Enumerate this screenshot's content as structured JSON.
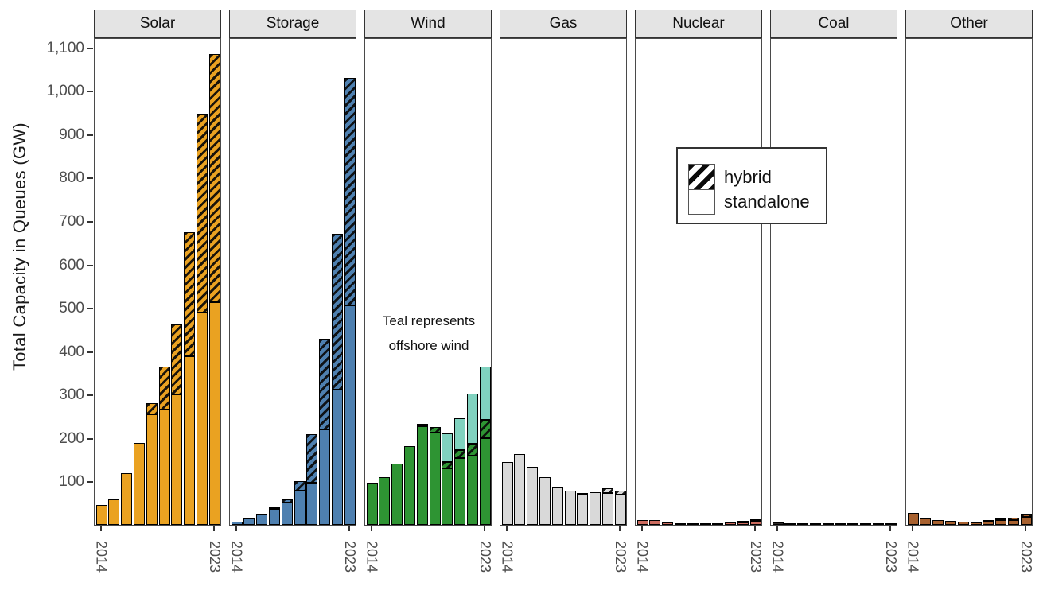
{
  "chart_data": {
    "type": "bar",
    "title": "",
    "ylabel": "Total Capacity in Queues (GW)",
    "xlabel": "",
    "ylim": [
      0,
      1123
    ],
    "grid": false,
    "legend_position": "inside-top-right-of-nuclear-facet",
    "yticks": [
      {
        "value": 100,
        "label": "100"
      },
      {
        "value": 200,
        "label": "200"
      },
      {
        "value": 300,
        "label": "300"
      },
      {
        "value": 400,
        "label": "400"
      },
      {
        "value": 500,
        "label": "500"
      },
      {
        "value": 600,
        "label": "600"
      },
      {
        "value": 700,
        "label": "700"
      },
      {
        "value": 800,
        "label": "800"
      },
      {
        "value": 900,
        "label": "900"
      },
      {
        "value": 1000,
        "label": "1,000"
      },
      {
        "value": 1100,
        "label": "1,100"
      }
    ],
    "years": [
      2014,
      2015,
      2016,
      2017,
      2018,
      2019,
      2020,
      2021,
      2022,
      2023
    ],
    "xtick_labels_shown": [
      "2014",
      "2023"
    ],
    "legend": {
      "hybrid_label": "hybrid",
      "standalone_label": "standalone",
      "hatch_color": "#000000"
    },
    "annotation": {
      "line1": "Teal represents",
      "line2": "offshore wind"
    },
    "facets": [
      {
        "name": "Solar",
        "color": "#EAA221",
        "standalone": [
          45,
          58,
          120,
          188,
          255,
          265,
          300,
          388,
          490,
          513
        ],
        "hybrid": [
          0,
          0,
          0,
          0,
          26,
          100,
          162,
          287,
          457,
          572
        ],
        "offshore": [
          0,
          0,
          0,
          0,
          0,
          0,
          0,
          0,
          0,
          0
        ]
      },
      {
        "name": "Storage",
        "color": "#4E80B0",
        "standalone": [
          8,
          14,
          25,
          36,
          52,
          78,
          97,
          220,
          311,
          505
        ],
        "hybrid": [
          0,
          0,
          0,
          2,
          6,
          22,
          112,
          209,
          360,
          525
        ],
        "offshore": [
          0,
          0,
          0,
          0,
          0,
          0,
          0,
          0,
          0,
          0
        ]
      },
      {
        "name": "Wind",
        "color": "#2E9433",
        "offshore_color": "#80D2BF",
        "standalone": [
          97,
          110,
          141,
          182,
          228,
          212,
          131,
          154,
          160,
          200
        ],
        "hybrid": [
          0,
          0,
          0,
          0,
          4,
          14,
          14,
          18,
          27,
          42
        ],
        "offshore": [
          0,
          0,
          0,
          0,
          0,
          0,
          66,
          74,
          116,
          122
        ]
      },
      {
        "name": "Gas",
        "color": "#D9D9D9",
        "standalone": [
          145,
          163,
          133,
          110,
          86,
          78,
          70,
          75,
          74,
          69
        ],
        "hybrid": [
          0,
          0,
          0,
          0,
          0,
          0,
          2,
          0,
          10,
          10
        ],
        "offshore": [
          0,
          0,
          0,
          0,
          0,
          0,
          0,
          0,
          0,
          0
        ]
      },
      {
        "name": "Nuclear",
        "color": "#CC6B5E",
        "standalone": [
          12,
          12,
          5,
          2,
          1,
          2,
          3,
          6,
          6,
          9
        ],
        "hybrid": [
          0,
          0,
          0,
          0,
          0,
          0,
          0,
          0,
          2,
          3
        ],
        "offshore": [
          0,
          0,
          0,
          0,
          0,
          0,
          0,
          0,
          0,
          0
        ]
      },
      {
        "name": "Coal",
        "color": "#2E2A28",
        "standalone": [
          5,
          2.5,
          1,
          0.8,
          0.8,
          0.8,
          0.8,
          0.8,
          1,
          1.5
        ],
        "hybrid": [
          0,
          0,
          0,
          0,
          0,
          0,
          0,
          0,
          0,
          0
        ],
        "offshore": [
          0,
          0,
          0,
          0,
          0,
          0,
          0,
          0,
          0,
          0
        ]
      },
      {
        "name": "Other",
        "color": "#A8612F",
        "standalone": [
          28,
          14,
          12,
          9,
          7,
          6,
          8,
          11,
          12,
          19
        ],
        "hybrid": [
          0,
          0,
          0,
          0,
          0,
          0,
          1,
          3,
          4,
          6
        ],
        "offshore": [
          0,
          0,
          0,
          0,
          0,
          0,
          0,
          0,
          0,
          0
        ]
      }
    ]
  }
}
